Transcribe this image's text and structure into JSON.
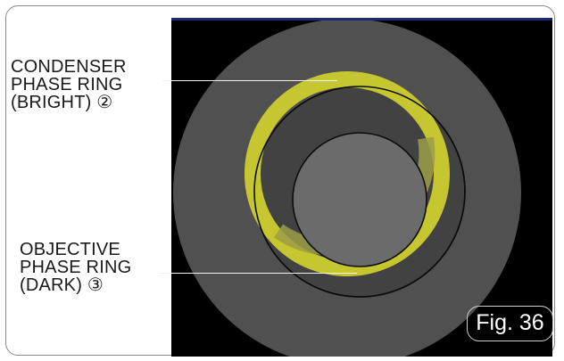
{
  "labels": {
    "condenser": {
      "line1": "CONDENSER",
      "line2": "PHASE RING",
      "line3": "(BRIGHT) ②"
    },
    "objective": {
      "line1": "OBJECTIVE",
      "line2": "PHASE RING",
      "line3": "(DARK) ③"
    }
  },
  "figure_label": "Fig. 36",
  "colors": {
    "background": "#000000",
    "outer_field": "#505050",
    "objective_ring": "#424242",
    "center_spot": "#6b6b6b",
    "condenser_ring": "#c6c631",
    "condenser_ring_overlap": "#9c9c46",
    "outline": "#0c0c0c",
    "leader_line": "#f2f2f2"
  }
}
